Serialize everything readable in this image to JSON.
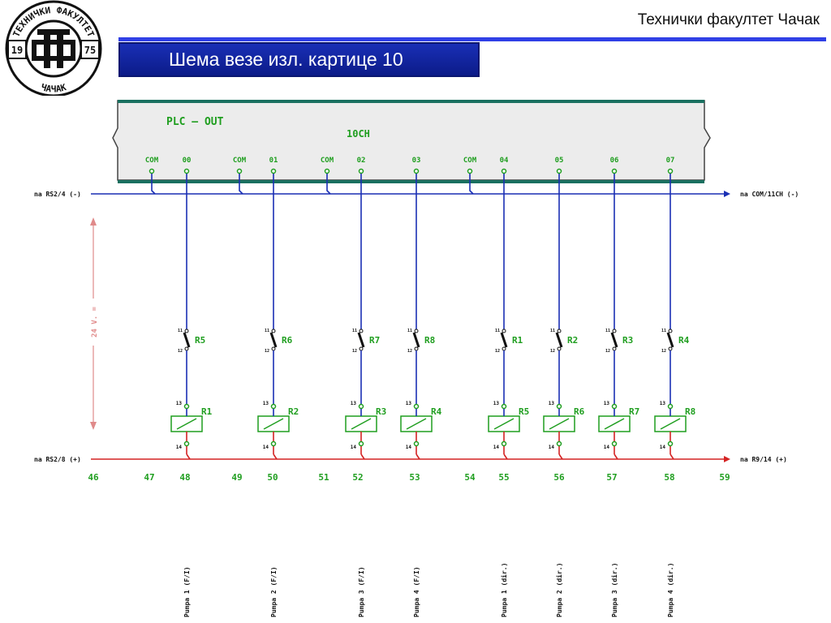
{
  "header": {
    "org": "Технички факултет Чачак",
    "title": "Шема везе изл. картице 10"
  },
  "logo": {
    "top_text": "ТЕХНИЧКИ ФАКУЛТЕТ",
    "bottom_text": "ЧАЧАК",
    "year_left": "19",
    "year_right": "75",
    "monogram": "ТФ"
  },
  "plc": {
    "label": "PLC — OUT",
    "channel": "10CH",
    "terminals": [
      "COM",
      "00",
      "COM",
      "01",
      "COM",
      "02",
      "03",
      "COM",
      "04",
      "05",
      "06",
      "07"
    ]
  },
  "rails": {
    "left_neg": "na RS2/4 (-)",
    "right_neg": "na COM/11CH (-)",
    "left_pos": "na RS2/8 (+)",
    "right_pos": "na R9/14 (+)",
    "voltage": "24 V. ="
  },
  "contacts": [
    "R5",
    "R6",
    "R7",
    "R8",
    "R1",
    "R2",
    "R3",
    "R4"
  ],
  "coils": [
    "R1",
    "R2",
    "R3",
    "R4",
    "R5",
    "R6",
    "R7",
    "R8"
  ],
  "pin_top": "13",
  "pin_bottom": "14",
  "contact_pin_top": "11",
  "contact_pin_bottom": "12",
  "line_numbers": [
    "46",
    "47",
    "48",
    "49",
    "50",
    "51",
    "52",
    "53",
    "54",
    "55",
    "56",
    "57",
    "58",
    "59"
  ],
  "pumps": [
    "Pumpa 1 (F/I)",
    "Pumpa 2 (F/I)",
    "Pumpa 3 (F/I)",
    "Pumpa 4 (F/I)",
    "Pumpa 1 (dir.)",
    "Pumpa 2 (dir.)",
    "Pumpa 3 (dir.)",
    "Pumpa 4 (dir.)"
  ]
}
